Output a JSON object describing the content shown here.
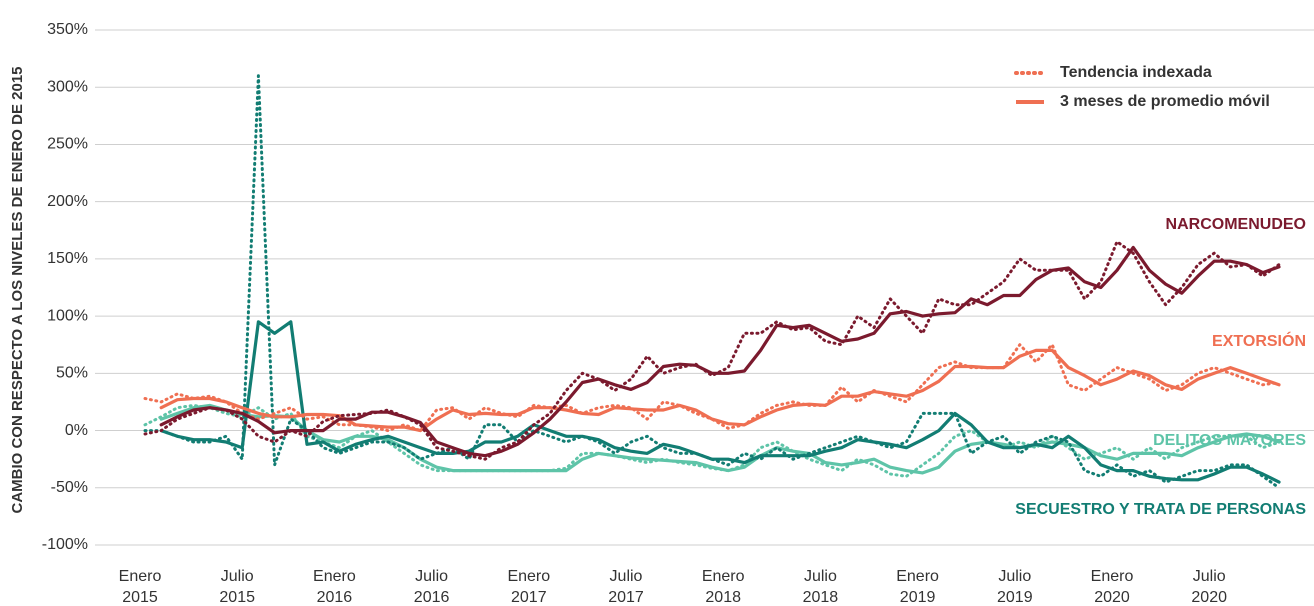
{
  "chart_data": {
    "type": "line",
    "y_axis_label": "CAMBIO CON RESPECTO A LOS NIVELES DE ENERO DE 2015",
    "categories": [
      "Enero 2015",
      null,
      null,
      null,
      null,
      null,
      "Julio 2015",
      null,
      null,
      null,
      null,
      null,
      "Enero 2016",
      null,
      null,
      null,
      null,
      null,
      "Julio 2016",
      null,
      null,
      null,
      null,
      null,
      "Enero 2017",
      null,
      null,
      null,
      null,
      null,
      "Julio 2017",
      null,
      null,
      null,
      null,
      null,
      "Enero 2018",
      null,
      null,
      null,
      null,
      null,
      "Julio 2018",
      null,
      null,
      null,
      null,
      null,
      "Enero 2019",
      null,
      null,
      null,
      null,
      null,
      "Julio 2019",
      null,
      null,
      null,
      null,
      null,
      "Enero 2020",
      null,
      null,
      null,
      null,
      null,
      "Julio 2020",
      null,
      null,
      null,
      null
    ],
    "ylim": [
      -100,
      350
    ],
    "yticks": [
      {
        "value": -100,
        "label": "-100%"
      },
      {
        "value": -50,
        "label": "-50%"
      },
      {
        "value": 0,
        "label": "0%"
      },
      {
        "value": 50,
        "label": "50%"
      },
      {
        "value": 100,
        "label": "100%"
      },
      {
        "value": 150,
        "label": "150%"
      },
      {
        "value": 200,
        "label": "200%"
      },
      {
        "value": 250,
        "label": "250%"
      },
      {
        "value": 300,
        "label": "300%"
      },
      {
        "value": 350,
        "label": "350%"
      }
    ],
    "grid": true,
    "legend": [
      {
        "label": "Tendencia indexada",
        "style": "dotted",
        "color": "#ef6f52"
      },
      {
        "label": "3 meses de promedio móvil",
        "style": "solid",
        "color": "#ef6f52"
      }
    ],
    "series": [
      {
        "name": "DELITOS MAYORES",
        "color": "#5ec4a8",
        "trend": [
          5,
          12,
          20,
          22,
          20,
          15,
          12,
          20,
          10,
          15,
          -5,
          -10,
          -15,
          -5,
          0,
          -10,
          -20,
          -30,
          -35,
          -35,
          -35,
          -35,
          -35,
          -35,
          -35,
          -35,
          -33,
          -20,
          -20,
          -22,
          -25,
          -28,
          -25,
          -28,
          -30,
          -33,
          -35,
          -30,
          -15,
          -10,
          -18,
          -25,
          -30,
          -35,
          -25,
          -30,
          -38,
          -40,
          -30,
          -20,
          -5,
          0,
          -10,
          -15,
          -10,
          -15,
          -5,
          -15,
          -25,
          -20,
          -15,
          -25,
          -15,
          -25,
          -15,
          -10,
          -5,
          -5,
          -5,
          -15,
          -10
        ],
        "values": [
          null,
          10,
          15,
          20,
          22,
          18,
          14,
          12,
          13,
          12,
          0,
          -8,
          -10,
          -5,
          -5,
          -8,
          -15,
          -25,
          -32,
          -35,
          -35,
          -35,
          -35,
          -35,
          -35,
          -35,
          -35,
          -25,
          -20,
          -22,
          -24,
          -25,
          -26,
          -27,
          -28,
          -32,
          -35,
          -32,
          -22,
          -15,
          -18,
          -20,
          -28,
          -30,
          -28,
          -25,
          -32,
          -35,
          -37,
          -32,
          -18,
          -12,
          -10,
          -12,
          -15,
          -13,
          -10,
          -12,
          -15,
          -22,
          -25,
          -20,
          -20,
          -20,
          -22,
          -15,
          -10,
          -5,
          -3,
          -5,
          -10
        ]
      },
      {
        "name": "SECUESTRO Y TRATA DE PERSONAS",
        "color": "#127d73",
        "trend": [
          0,
          0,
          -5,
          -10,
          -10,
          -5,
          -25,
          310,
          -30,
          10,
          0,
          -15,
          -20,
          -15,
          -10,
          -10,
          -15,
          -25,
          -20,
          -15,
          -25,
          5,
          5,
          -10,
          0,
          -5,
          -10,
          -5,
          -10,
          -20,
          -10,
          -5,
          -15,
          -20,
          -20,
          -25,
          -30,
          -20,
          -25,
          -15,
          -25,
          -20,
          -15,
          -10,
          -5,
          -10,
          -15,
          -10,
          15,
          15,
          15,
          -20,
          -10,
          -5,
          -20,
          -10,
          -5,
          -10,
          -35,
          -40,
          -30,
          -40,
          -35,
          -45,
          -40,
          -35,
          -35,
          -30,
          -30,
          -40,
          -50
        ],
        "values": [
          null,
          0,
          -5,
          -8,
          -8,
          -10,
          -15,
          95,
          85,
          95,
          -12,
          -10,
          -18,
          -12,
          -8,
          -5,
          -10,
          -15,
          -20,
          -20,
          -18,
          -10,
          -10,
          -5,
          5,
          0,
          -5,
          -5,
          -8,
          -15,
          -18,
          -20,
          -12,
          -15,
          -20,
          -25,
          -25,
          -28,
          -22,
          -22,
          -22,
          -22,
          -18,
          -15,
          -8,
          -10,
          -12,
          -15,
          -8,
          0,
          15,
          5,
          -10,
          -15,
          -15,
          -12,
          -15,
          -5,
          -15,
          -30,
          -35,
          -35,
          -40,
          -42,
          -43,
          -43,
          -38,
          -32,
          -32,
          -38,
          -45
        ]
      },
      {
        "name": "EXTORSIÓN",
        "color": "#ef6f52",
        "trend": [
          28,
          25,
          32,
          28,
          30,
          25,
          15,
          10,
          15,
          20,
          10,
          12,
          5,
          5,
          3,
          0,
          5,
          0,
          18,
          20,
          10,
          20,
          15,
          12,
          22,
          20,
          22,
          15,
          20,
          22,
          20,
          10,
          25,
          22,
          15,
          10,
          2,
          5,
          15,
          22,
          25,
          22,
          22,
          38,
          25,
          35,
          30,
          25,
          40,
          55,
          60,
          55,
          55,
          55,
          75,
          60,
          75,
          40,
          35,
          45,
          55,
          50,
          45,
          35,
          40,
          50,
          55,
          50,
          45,
          40,
          42
        ],
        "values": [
          null,
          20,
          27,
          28,
          28,
          25,
          20,
          15,
          12,
          12,
          14,
          14,
          13,
          5,
          4,
          3,
          3,
          0,
          10,
          18,
          14,
          15,
          14,
          14,
          20,
          20,
          18,
          15,
          14,
          20,
          19,
          18,
          18,
          22,
          18,
          10,
          6,
          5,
          12,
          18,
          22,
          23,
          22,
          30,
          30,
          34,
          32,
          30,
          35,
          43,
          56,
          56,
          55,
          55,
          65,
          70,
          70,
          55,
          48,
          40,
          45,
          52,
          48,
          40,
          36,
          45,
          50,
          55,
          50,
          45,
          40
        ]
      },
      {
        "name": "NARCOMENUDEO",
        "color": "#7b1a2e",
        "trend": [
          -3,
          0,
          10,
          15,
          20,
          18,
          10,
          -5,
          -10,
          0,
          -5,
          8,
          13,
          14,
          15,
          18,
          12,
          5,
          -15,
          -18,
          -22,
          -25,
          -15,
          -10,
          5,
          15,
          35,
          50,
          45,
          35,
          45,
          65,
          50,
          55,
          58,
          48,
          55,
          85,
          85,
          95,
          88,
          90,
          78,
          75,
          100,
          90,
          115,
          100,
          85,
          115,
          110,
          110,
          120,
          130,
          150,
          140,
          140,
          140,
          115,
          130,
          165,
          155,
          130,
          110,
          125,
          145,
          155,
          143,
          145,
          135,
          145
        ],
        "values": [
          null,
          5,
          12,
          18,
          20,
          18,
          15,
          8,
          -2,
          0,
          0,
          0,
          10,
          10,
          16,
          16,
          12,
          7,
          -10,
          -15,
          -20,
          -22,
          -18,
          -12,
          -2,
          10,
          25,
          42,
          45,
          40,
          36,
          42,
          56,
          58,
          57,
          50,
          50,
          52,
          70,
          92,
          90,
          92,
          85,
          78,
          80,
          85,
          102,
          104,
          100,
          102,
          103,
          115,
          110,
          118,
          118,
          132,
          140,
          142,
          130,
          125,
          140,
          160,
          140,
          128,
          120,
          135,
          148,
          148,
          145,
          138,
          143
        ]
      }
    ]
  }
}
